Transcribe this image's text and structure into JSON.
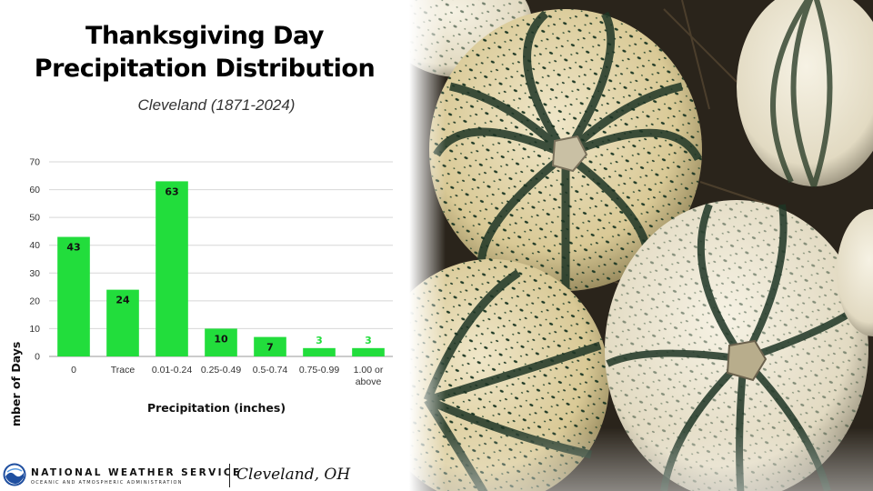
{
  "header": {
    "title_line1": "Thanksgiving Day",
    "title_line2": "Precipitation Distribution",
    "subtitle": "Cleveland (1871-2024)"
  },
  "footer": {
    "agency_name": "NATIONAL WEATHER SERVICE",
    "agency_sub": "OCEANIC AND ATMOSPHERIC ADMINISTRATION",
    "office": "Cleveland, OH"
  },
  "chart_data": {
    "type": "bar",
    "categories": [
      "0",
      "Trace",
      "0.01-0.24",
      "0.25-0.49",
      "0.5-0.74",
      "0.75-0.99",
      "1.00 or above"
    ],
    "values": [
      43,
      24,
      63,
      10,
      7,
      3,
      3
    ],
    "xlabel": "Precipitation (inches)",
    "ylabel": "Number of Days",
    "ylim": [
      0,
      70
    ],
    "yticks": [
      0,
      10,
      20,
      30,
      40,
      50,
      60,
      70
    ],
    "grid": true,
    "legend": "none",
    "bar_color": "#22dd3c",
    "label_color_inside": "#111111",
    "label_color_outside": "#22dd3c"
  },
  "photo": {
    "icon": "squash-photo"
  }
}
